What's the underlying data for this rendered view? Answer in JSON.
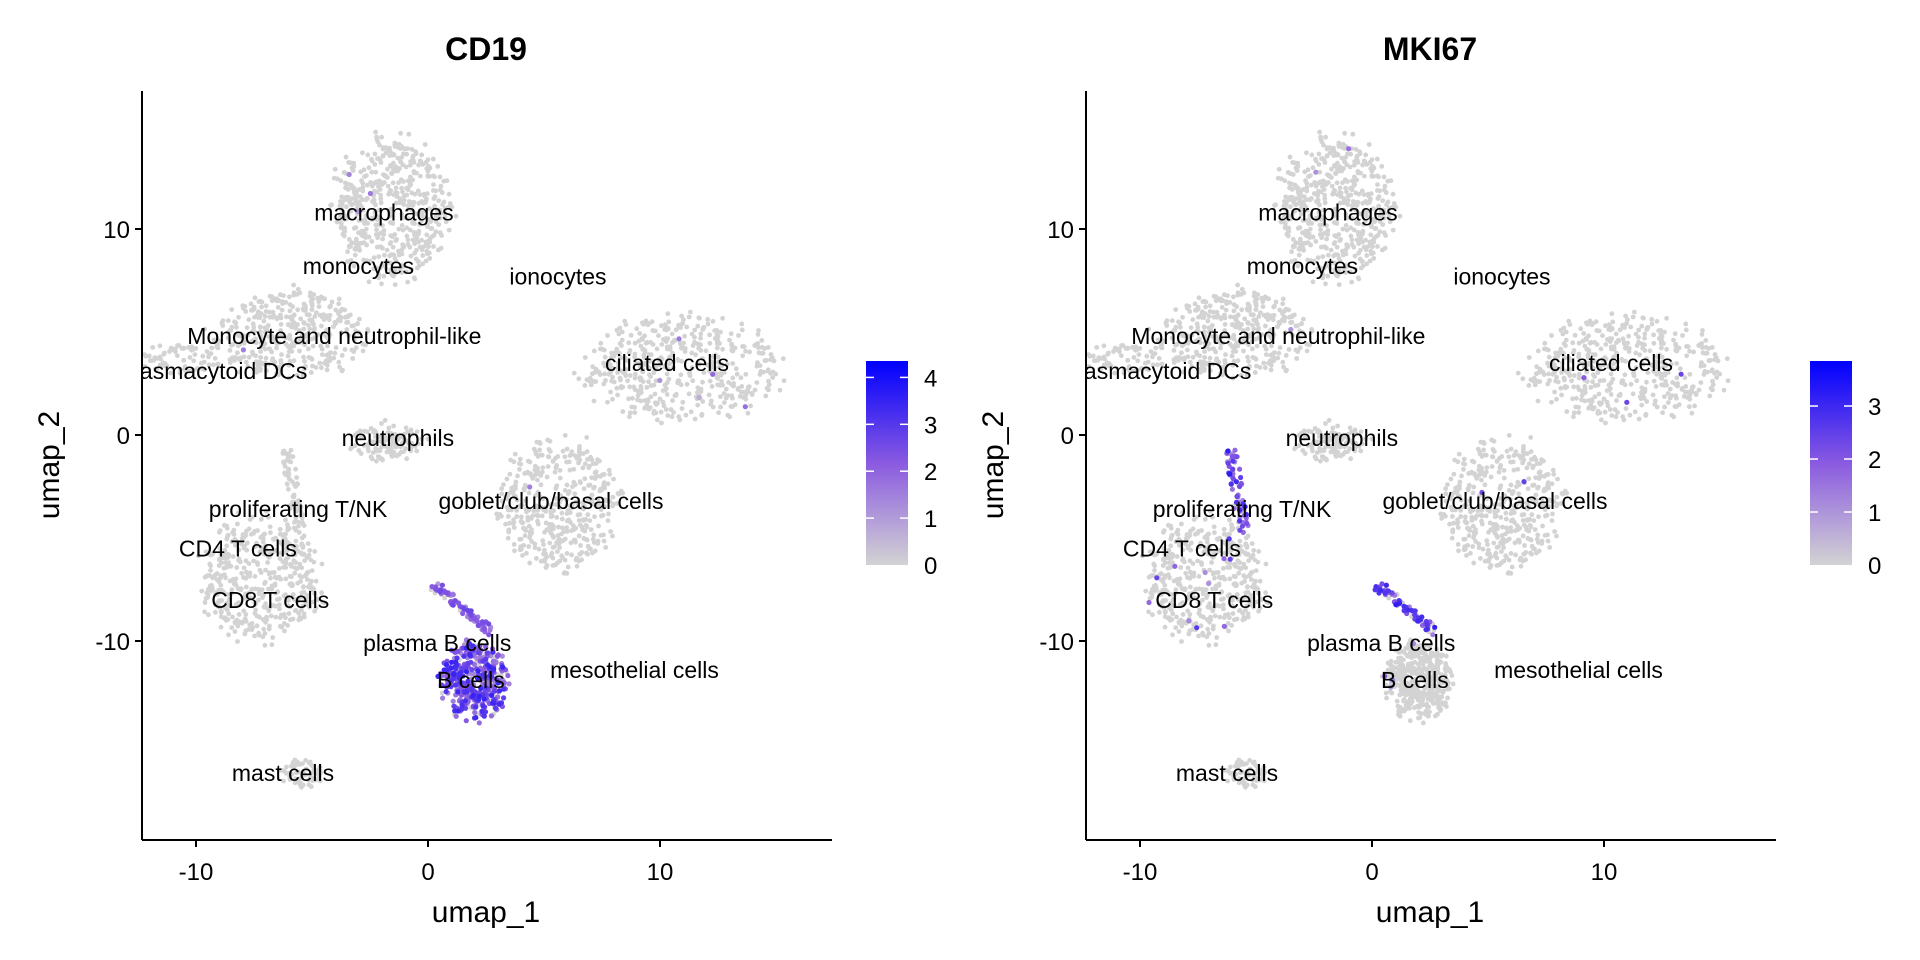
{
  "colors": {
    "low": "#d3d3d3",
    "mid": "#8a5ae0",
    "high": "#0000ff",
    "axis": "#000000"
  },
  "chart_data": [
    {
      "type": "scatter",
      "title": "CD19",
      "xlabel": "umap_1",
      "ylabel": "umap_2",
      "xlim": [
        -12.4,
        17.4
      ],
      "ylim": [
        -19.7,
        16.7
      ],
      "xticks": [
        "-10",
        "0",
        "10"
      ],
      "xtick_values": [
        -10,
        0,
        10
      ],
      "yticks": [
        "10",
        "0",
        "-10"
      ],
      "ytick_values": [
        10,
        0,
        -10
      ],
      "grid": false,
      "legend": {
        "placement": "right",
        "ticks": [
          "0",
          "1",
          "2",
          "3",
          "4"
        ],
        "tick_values": [
          0,
          1,
          2,
          3,
          4
        ],
        "max": 4.35
      },
      "expression": {
        "macrophages": [
          0.003,
          1.5
        ],
        "monocytes": [
          0.003,
          1.5
        ],
        "monocytes_tail": [
          0,
          0
        ],
        "ciliated": [
          0.01,
          1.5
        ],
        "neutrophils": [
          0,
          0
        ],
        "goblet": [
          0.003,
          1.2
        ],
        "tcells": [
          0,
          0
        ],
        "tstalk": [
          0,
          0
        ],
        "bcells": [
          0.85,
          2.6
        ],
        "plasma": [
          0.8,
          2.0
        ],
        "mast": [
          0,
          0
        ]
      },
      "labels": [
        {
          "text": "macrophages",
          "x": -1.9,
          "y": 10.8,
          "anchor": "middle"
        },
        {
          "text": "monocytes",
          "x": -3.0,
          "y": 8.2,
          "anchor": "middle"
        },
        {
          "text": "ionocytes",
          "x": 5.6,
          "y": 7.7,
          "anchor": "middle"
        },
        {
          "text": "Monocyte and neutrophil-like",
          "x": 2.3,
          "y": 4.8,
          "anchor": "end"
        },
        {
          "text": "Plasmacytoid DCs",
          "x": -5.2,
          "y": 3.1,
          "anchor": "end"
        },
        {
          "text": "ciliated cells",
          "x": 10.3,
          "y": 3.5,
          "anchor": "middle"
        },
        {
          "text": "neutrophils",
          "x": -1.3,
          "y": -0.15,
          "anchor": "middle"
        },
        {
          "text": "goblet/club/basal cells",
          "x": 5.3,
          "y": -3.2,
          "anchor": "middle"
        },
        {
          "text": "proliferating T/NK",
          "x": -5.6,
          "y": -3.6,
          "anchor": "middle"
        },
        {
          "text": "CD4 T cells",
          "x": -5.65,
          "y": -5.5,
          "anchor": "end"
        },
        {
          "text": "CD8 T cells",
          "x": -6.8,
          "y": -8.0,
          "anchor": "middle"
        },
        {
          "text": "plasma B cells",
          "x": 0.4,
          "y": -10.1,
          "anchor": "middle"
        },
        {
          "text": "B cells",
          "x": 1.85,
          "y": -11.9,
          "anchor": "middle"
        },
        {
          "text": "mesothelial cells",
          "x": 8.9,
          "y": -11.4,
          "anchor": "middle"
        },
        {
          "text": "mast cells",
          "x": -6.25,
          "y": -16.4,
          "anchor": "middle"
        }
      ]
    },
    {
      "type": "scatter",
      "title": "MKI67",
      "xlabel": "umap_1",
      "ylabel": "umap_2",
      "xlim": [
        -12.4,
        17.4
      ],
      "ylim": [
        -19.7,
        16.7
      ],
      "xticks": [
        "-10",
        "0",
        "10"
      ],
      "xtick_values": [
        -10,
        0,
        10
      ],
      "yticks": [
        "10",
        "0",
        "-10"
      ],
      "ytick_values": [
        10,
        0,
        -10
      ],
      "grid": false,
      "legend": {
        "placement": "right",
        "ticks": [
          "0",
          "1",
          "2",
          "3"
        ],
        "tick_values": [
          0,
          1,
          2,
          3
        ],
        "max": 3.85
      },
      "expression": {
        "macrophages": [
          0.002,
          1.5
        ],
        "monocytes": [
          0.003,
          1.5
        ],
        "monocytes_tail": [
          0,
          0
        ],
        "ciliated": [
          0.006,
          1.8
        ],
        "neutrophils": [
          0,
          0
        ],
        "goblet": [
          0.02,
          2.0
        ],
        "tcells": [
          0.03,
          2.0
        ],
        "tstalk": [
          0.9,
          2.4
        ],
        "bcells": [
          0.01,
          1.5
        ],
        "plasma": [
          0.7,
          2.4
        ],
        "mast": [
          0,
          0
        ]
      },
      "labels": [
        {
          "text": "macrophages",
          "x": -1.9,
          "y": 10.8,
          "anchor": "middle"
        },
        {
          "text": "monocytes",
          "x": -3.0,
          "y": 8.2,
          "anchor": "middle"
        },
        {
          "text": "ionocytes",
          "x": 5.6,
          "y": 7.7,
          "anchor": "middle"
        },
        {
          "text": "Monocyte and neutrophil-like",
          "x": 2.3,
          "y": 4.8,
          "anchor": "end"
        },
        {
          "text": "Plasmacytoid DCs",
          "x": -5.2,
          "y": 3.1,
          "anchor": "end"
        },
        {
          "text": "ciliated cells",
          "x": 10.3,
          "y": 3.5,
          "anchor": "middle"
        },
        {
          "text": "neutrophils",
          "x": -1.3,
          "y": -0.15,
          "anchor": "middle"
        },
        {
          "text": "goblet/club/basal cells",
          "x": 5.3,
          "y": -3.2,
          "anchor": "middle"
        },
        {
          "text": "proliferating T/NK",
          "x": -5.6,
          "y": -3.6,
          "anchor": "middle"
        },
        {
          "text": "CD4 T cells",
          "x": -5.65,
          "y": -5.5,
          "anchor": "end"
        },
        {
          "text": "CD8 T cells",
          "x": -6.8,
          "y": -8.0,
          "anchor": "middle"
        },
        {
          "text": "plasma B cells",
          "x": 0.4,
          "y": -10.1,
          "anchor": "middle"
        },
        {
          "text": "B cells",
          "x": 1.85,
          "y": -11.9,
          "anchor": "middle"
        },
        {
          "text": "mesothelial cells",
          "x": 8.9,
          "y": -11.4,
          "anchor": "middle"
        },
        {
          "text": "mast cells",
          "x": -6.25,
          "y": -16.4,
          "anchor": "middle"
        }
      ]
    }
  ],
  "clusters": [
    {
      "id": "macrophages",
      "shape": "ellipse",
      "cx": -1.6,
      "cy": 11.0,
      "rx": 2.5,
      "ry": 3.4,
      "n": 520
    },
    {
      "id": "monocytes",
      "shape": "ellipse",
      "cx": -6.0,
      "cy": 4.9,
      "rx": 3.2,
      "ry": 2.1,
      "n": 380
    },
    {
      "id": "monocytes_tail",
      "shape": "ellipse",
      "cx": -10.6,
      "cy": 3.7,
      "rx": 1.7,
      "ry": 0.7,
      "n": 70
    },
    {
      "id": "ciliated",
      "shape": "ellipse",
      "cx": 11.0,
      "cy": 3.2,
      "rx": 4.2,
      "ry": 2.5,
      "n": 480
    },
    {
      "id": "neutrophils",
      "shape": "ellipse",
      "cx": -1.8,
      "cy": -0.3,
      "rx": 1.6,
      "ry": 0.9,
      "n": 110
    },
    {
      "id": "goblet",
      "shape": "ellipse",
      "cx": 5.6,
      "cy": -3.3,
      "rx": 2.5,
      "ry": 3.2,
      "n": 420
    },
    {
      "id": "tcells",
      "shape": "ellipse",
      "cx": -7.2,
      "cy": -7.0,
      "rx": 2.6,
      "ry": 3.0,
      "n": 460
    },
    {
      "id": "tstalk",
      "shape": "segment",
      "x1": -6.1,
      "y1": -0.8,
      "x2": -5.5,
      "y2": -4.6,
      "w": 0.25,
      "n": 70
    },
    {
      "id": "bcells",
      "shape": "ellipse",
      "cx": 2.0,
      "cy": -12.0,
      "rx": 1.4,
      "ry": 1.9,
      "n": 420
    },
    {
      "id": "plasma",
      "shape": "segment",
      "x1": 0.3,
      "y1": -7.3,
      "x2": 2.6,
      "y2": -9.5,
      "w": 0.2,
      "n": 90
    },
    {
      "id": "mast",
      "shape": "ellipse",
      "cx": -5.4,
      "cy": -16.4,
      "rx": 0.9,
      "ry": 0.7,
      "n": 60
    }
  ]
}
